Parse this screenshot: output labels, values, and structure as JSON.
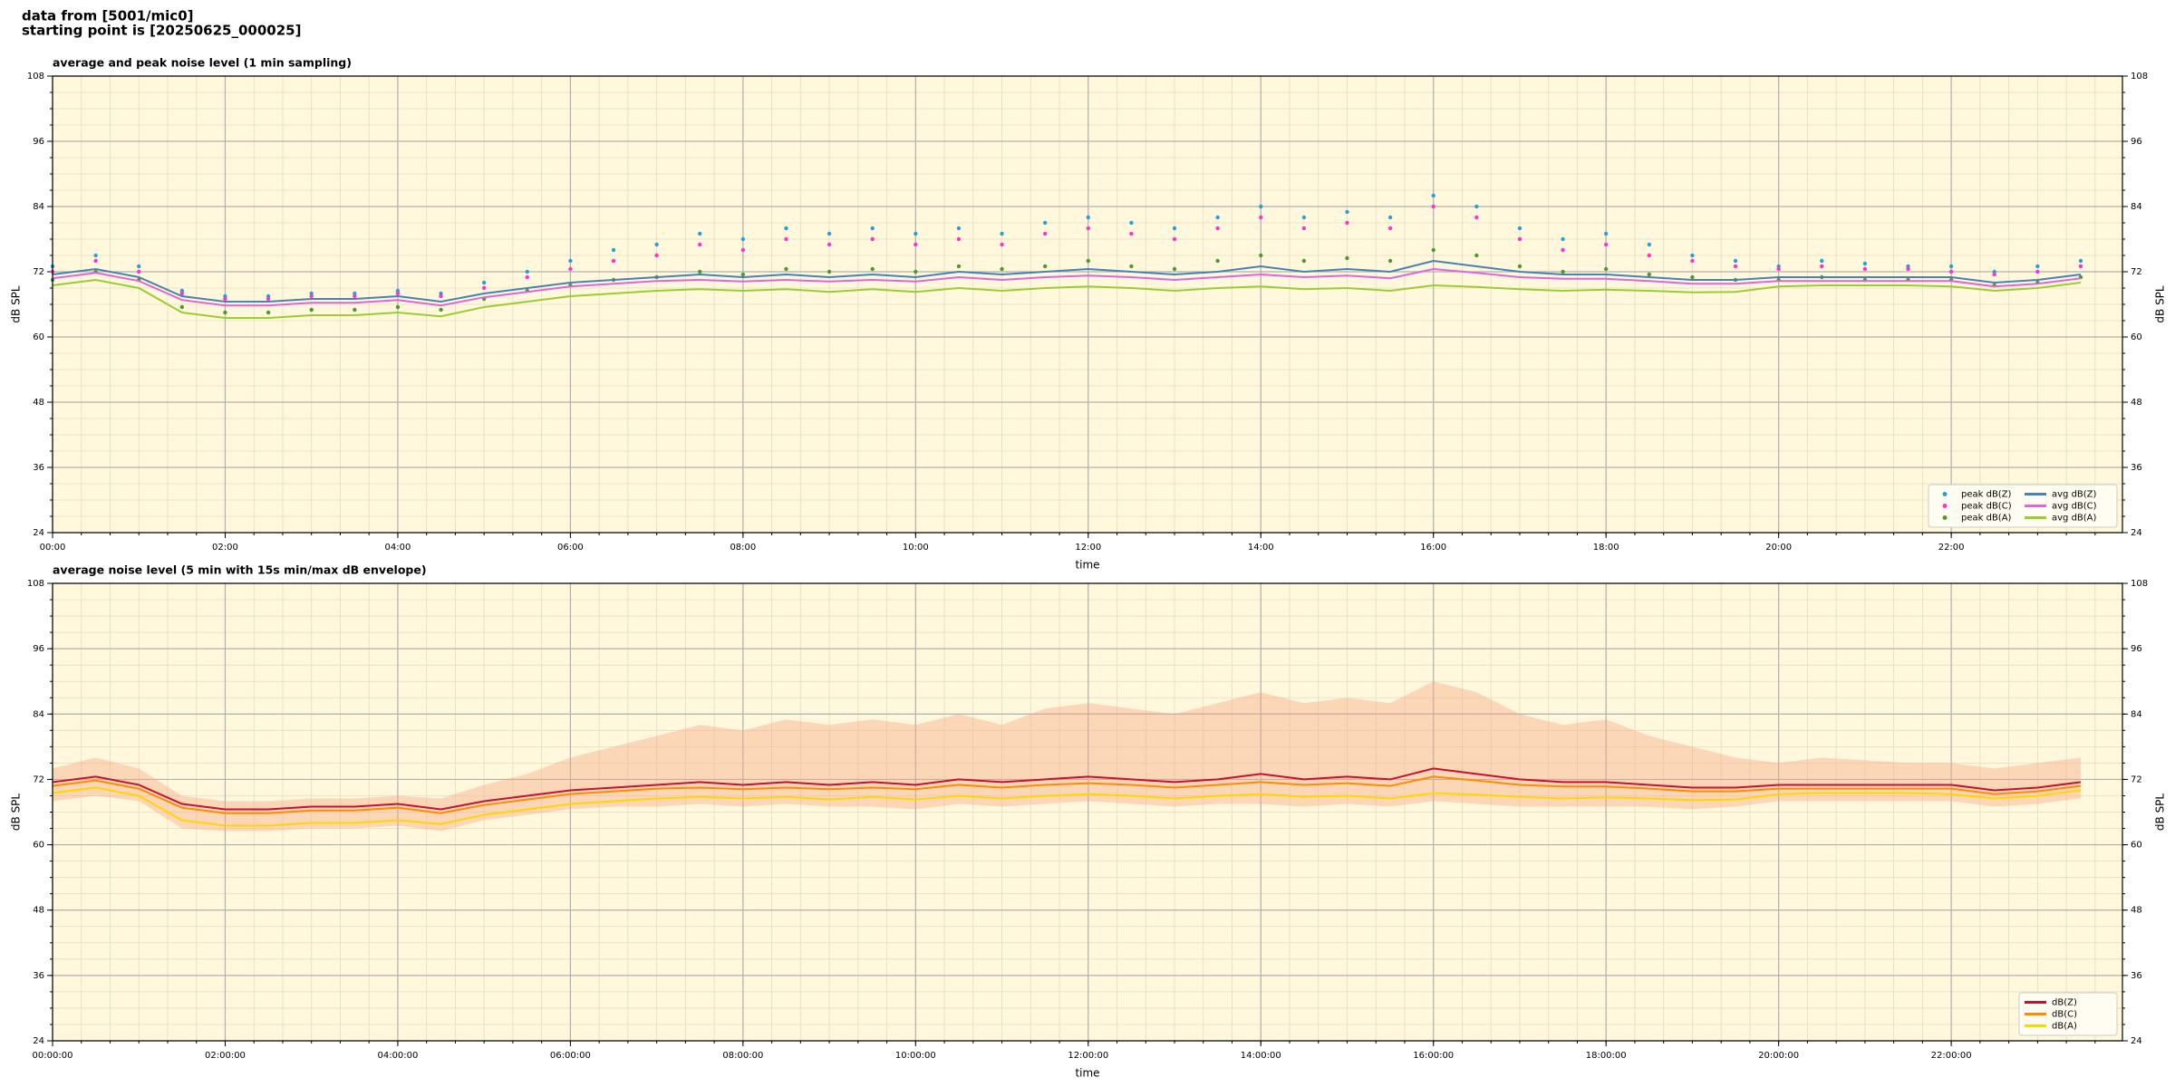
{
  "header": {
    "source": "data from [5001/mic0]",
    "start": "starting point is [20250625_000025]"
  },
  "chart_data": [
    {
      "type": "line",
      "title": "average and peak noise level (1 min sampling)",
      "x_label": "time",
      "y_label": "dB SPL",
      "x": [
        "00:00",
        "00:30",
        "01:00",
        "01:30",
        "02:00",
        "02:30",
        "03:00",
        "03:30",
        "04:00",
        "04:30",
        "05:00",
        "05:30",
        "06:00",
        "06:30",
        "07:00",
        "07:30",
        "08:00",
        "08:30",
        "09:00",
        "09:30",
        "10:00",
        "10:30",
        "11:00",
        "11:30",
        "12:00",
        "12:30",
        "13:00",
        "13:30",
        "14:00",
        "14:30",
        "15:00",
        "15:30",
        "16:00",
        "16:30",
        "17:00",
        "17:30",
        "18:00",
        "18:30",
        "19:00",
        "19:30",
        "20:00",
        "20:30",
        "21:00",
        "21:30",
        "22:00",
        "22:30",
        "23:00",
        "23:30"
      ],
      "xlim": [
        "00:00",
        "23:59"
      ],
      "xticks": [
        "00:00",
        "02:00",
        "04:00",
        "06:00",
        "08:00",
        "10:00",
        "12:00",
        "14:00",
        "16:00",
        "18:00",
        "20:00",
        "22:00"
      ],
      "ylim": [
        24,
        108
      ],
      "yticks": [
        24,
        36,
        48,
        60,
        72,
        84,
        96,
        108
      ],
      "grid": true,
      "legend": "lower right",
      "legend_columns": 2,
      "background": "#fff8dc",
      "series": [
        {
          "name": "peak dB(Z)",
          "kind": "scatter",
          "color": "#2a9fd6",
          "values": [
            73,
            75,
            73,
            68.5,
            67.5,
            67.5,
            68,
            68,
            68.5,
            68,
            70,
            72,
            74,
            76,
            77,
            79,
            78,
            80,
            79,
            80,
            79,
            80,
            79,
            81,
            82,
            81,
            80,
            82,
            84,
            82,
            83,
            82,
            86,
            84,
            80,
            78,
            79,
            77,
            75,
            74,
            73,
            74,
            73.5,
            73,
            73,
            72,
            73,
            74
          ]
        },
        {
          "name": "peak dB(C)",
          "kind": "scatter",
          "color": "#ff33cc",
          "values": [
            72,
            74,
            72,
            68,
            67,
            67,
            67.5,
            67.5,
            68,
            67.5,
            69,
            71,
            72.5,
            74,
            75,
            77,
            76,
            78,
            77,
            78,
            77,
            78,
            77,
            79,
            80,
            79,
            78,
            80,
            82,
            80,
            81,
            80,
            84,
            82,
            78,
            76,
            77,
            75,
            74,
            73,
            72.5,
            73,
            72.5,
            72.5,
            72,
            71.5,
            72,
            73
          ]
        },
        {
          "name": "peak dB(A)",
          "kind": "scatter",
          "color": "#4c9a2a",
          "values": [
            70.5,
            72,
            70.5,
            65.5,
            64.5,
            64.5,
            65,
            65,
            65.5,
            65,
            67,
            68.5,
            69.5,
            70.5,
            71,
            72,
            71.5,
            72.5,
            72,
            72.5,
            72,
            73,
            72.5,
            73,
            74,
            73,
            72.5,
            74,
            75,
            74,
            74.5,
            74,
            76,
            75,
            73,
            72,
            72.5,
            71.5,
            71,
            70.5,
            70.5,
            71,
            70.5,
            70.5,
            70.5,
            69.5,
            70,
            71
          ]
        },
        {
          "name": "avg dB(Z)",
          "kind": "line",
          "color": "#4682b4",
          "values": [
            71.5,
            72.5,
            71,
            67.5,
            66.5,
            66.5,
            67,
            67,
            67.5,
            66.5,
            68,
            69,
            70,
            70.5,
            71,
            71.5,
            71,
            71.5,
            71,
            71.5,
            71,
            72,
            71.5,
            72,
            72.5,
            72,
            71.5,
            72,
            73,
            72,
            72.5,
            72,
            74,
            73,
            72,
            71.5,
            71.5,
            71,
            70.5,
            70.5,
            71,
            71,
            71,
            71,
            71,
            70,
            70.5,
            71.5
          ]
        },
        {
          "name": "avg dB(C)",
          "kind": "line",
          "color": "#e066d8",
          "values": [
            70.8,
            71.8,
            70.3,
            66.8,
            65.8,
            65.8,
            66.3,
            66.3,
            66.8,
            65.8,
            67.3,
            68.3,
            69.3,
            69.8,
            70.3,
            70.5,
            70.2,
            70.5,
            70.2,
            70.5,
            70.2,
            71,
            70.5,
            71,
            71.3,
            71,
            70.5,
            71,
            71.5,
            71,
            71.3,
            70.8,
            72.5,
            71.8,
            71,
            70.7,
            70.7,
            70.3,
            69.8,
            69.8,
            70.3,
            70.3,
            70.3,
            70.3,
            70.3,
            69.3,
            69.8,
            70.8
          ]
        },
        {
          "name": "avg dB(A)",
          "kind": "line",
          "color": "#9acd32",
          "values": [
            69.5,
            70.5,
            69,
            64.5,
            63.5,
            63.5,
            64,
            64,
            64.5,
            63.8,
            65.5,
            66.5,
            67.5,
            68,
            68.5,
            68.8,
            68.5,
            68.8,
            68.3,
            68.8,
            68.3,
            69,
            68.5,
            69,
            69.3,
            69,
            68.5,
            69,
            69.3,
            68.8,
            69,
            68.5,
            69.5,
            69.2,
            68.8,
            68.5,
            68.7,
            68.5,
            68.2,
            68.3,
            69.3,
            69.5,
            69.5,
            69.5,
            69.3,
            68.5,
            69,
            70
          ]
        }
      ]
    },
    {
      "type": "line",
      "title": "average noise level (5 min with 15s min/max dB envelope)",
      "x_label": "time",
      "y_label": "dB SPL",
      "x": [
        "00:00:00",
        "00:30:00",
        "01:00:00",
        "01:30:00",
        "02:00:00",
        "02:30:00",
        "03:00:00",
        "03:30:00",
        "04:00:00",
        "04:30:00",
        "05:00:00",
        "05:30:00",
        "06:00:00",
        "06:30:00",
        "07:00:00",
        "07:30:00",
        "08:00:00",
        "08:30:00",
        "09:00:00",
        "09:30:00",
        "10:00:00",
        "10:30:00",
        "11:00:00",
        "11:30:00",
        "12:00:00",
        "12:30:00",
        "13:00:00",
        "13:30:00",
        "14:00:00",
        "14:30:00",
        "15:00:00",
        "15:30:00",
        "16:00:00",
        "16:30:00",
        "17:00:00",
        "17:30:00",
        "18:00:00",
        "18:30:00",
        "19:00:00",
        "19:30:00",
        "20:00:00",
        "20:30:00",
        "21:00:00",
        "21:30:00",
        "22:00:00",
        "22:30:00",
        "23:00:00",
        "23:30:00"
      ],
      "xlim": [
        "00:00:00",
        "23:59:00"
      ],
      "xticks": [
        "00:00:00",
        "02:00:00",
        "04:00:00",
        "06:00:00",
        "08:00:00",
        "10:00:00",
        "12:00:00",
        "14:00:00",
        "16:00:00",
        "18:00:00",
        "20:00:00",
        "22:00:00"
      ],
      "ylim": [
        24,
        108
      ],
      "yticks": [
        24,
        36,
        48,
        60,
        72,
        84,
        96,
        108
      ],
      "grid": true,
      "legend": "lower right",
      "legend_columns": 1,
      "background": "#fff8dc",
      "envelope": {
        "color": "#f4a582",
        "lower": [
          68,
          69,
          68,
          63,
          62.5,
          62.5,
          63,
          63,
          63.5,
          62.5,
          64.5,
          65.5,
          66.5,
          67,
          67,
          67.5,
          67,
          67.5,
          67,
          67,
          66.5,
          67.5,
          67,
          67.5,
          68,
          67.5,
          67,
          67.5,
          67.5,
          67,
          67.5,
          67,
          68,
          67.5,
          67,
          67,
          67,
          67,
          66.5,
          67,
          68,
          68,
          68,
          68,
          68,
          67,
          67.5,
          68.5
        ],
        "upper": [
          74,
          76,
          74,
          69,
          68,
          68,
          68.5,
          68.5,
          69,
          68.5,
          71,
          73,
          76,
          78,
          80,
          82,
          81,
          83,
          82,
          83,
          82,
          84,
          82,
          85,
          86,
          85,
          84,
          86,
          88,
          86,
          87,
          86,
          90,
          88,
          84,
          82,
          83,
          80,
          78,
          76,
          75,
          76,
          75.5,
          75,
          75,
          74,
          75,
          76
        ]
      },
      "series": [
        {
          "name": "dB(Z)",
          "kind": "line",
          "color": "#c8102e",
          "values": [
            71.5,
            72.5,
            71,
            67.5,
            66.5,
            66.5,
            67,
            67,
            67.5,
            66.5,
            68,
            69,
            70,
            70.5,
            71,
            71.5,
            71,
            71.5,
            71,
            71.5,
            71,
            72,
            71.5,
            72,
            72.5,
            72,
            71.5,
            72,
            73,
            72,
            72.5,
            72,
            74,
            73,
            72,
            71.5,
            71.5,
            71,
            70.5,
            70.5,
            71,
            71,
            71,
            71,
            71,
            70,
            70.5,
            71.5
          ]
        },
        {
          "name": "dB(C)",
          "kind": "line",
          "color": "#ff8c00",
          "values": [
            70.8,
            71.8,
            70.3,
            66.8,
            65.8,
            65.8,
            66.3,
            66.3,
            66.8,
            65.8,
            67.3,
            68.3,
            69.3,
            69.8,
            70.3,
            70.5,
            70.2,
            70.5,
            70.2,
            70.5,
            70.2,
            71,
            70.5,
            71,
            71.3,
            71,
            70.5,
            71,
            71.5,
            71,
            71.3,
            70.8,
            72.5,
            71.8,
            71,
            70.7,
            70.7,
            70.3,
            69.8,
            69.8,
            70.3,
            70.3,
            70.3,
            70.3,
            70.3,
            69.3,
            69.8,
            70.8
          ]
        },
        {
          "name": "dB(A)",
          "kind": "line",
          "color": "#ffd700",
          "values": [
            69.5,
            70.5,
            69,
            64.5,
            63.5,
            63.5,
            64,
            64,
            64.5,
            63.8,
            65.5,
            66.5,
            67.5,
            68,
            68.5,
            68.8,
            68.5,
            68.8,
            68.3,
            68.8,
            68.3,
            69,
            68.5,
            69,
            69.3,
            69,
            68.5,
            69,
            69.3,
            68.8,
            69,
            68.5,
            69.5,
            69.2,
            68.8,
            68.5,
            68.7,
            68.5,
            68.2,
            68.3,
            69.3,
            69.5,
            69.5,
            69.5,
            69.3,
            68.5,
            69,
            70
          ]
        }
      ]
    }
  ]
}
